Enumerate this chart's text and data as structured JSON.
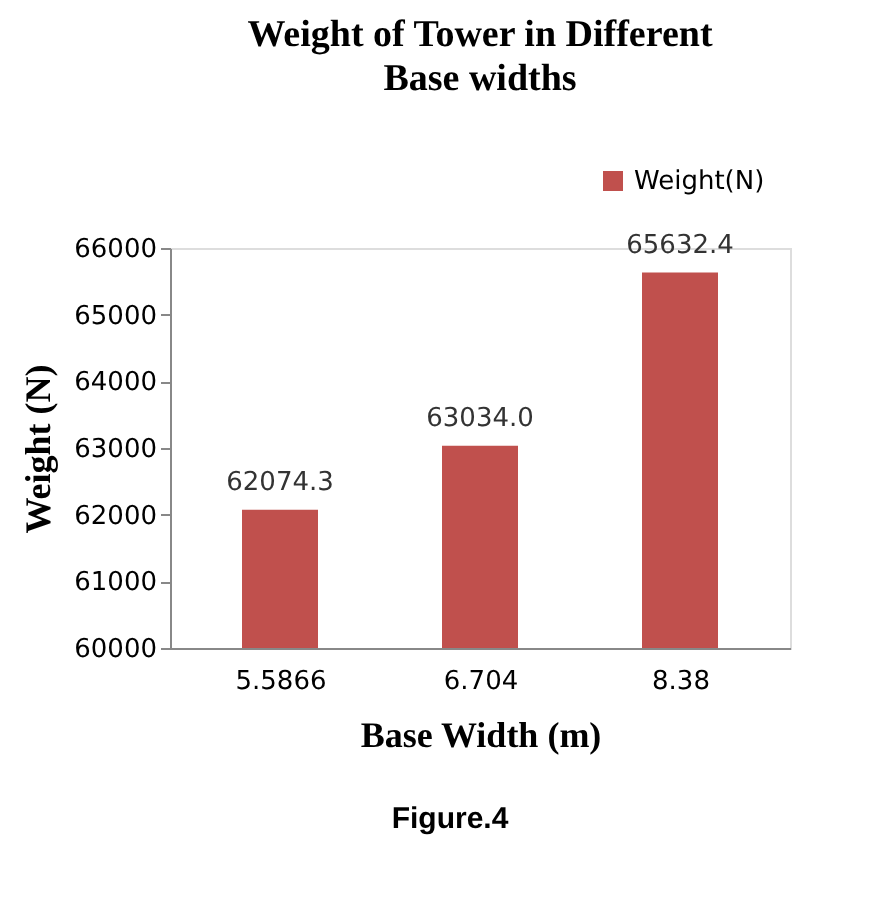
{
  "chart_data": {
    "type": "bar",
    "title": "Weight of Tower in Different Base widths",
    "xlabel": "Base Width (m)",
    "ylabel": "Weight (N)",
    "categories": [
      "5.5866",
      "6.704",
      "8.38"
    ],
    "series": [
      {
        "name": "Weight(N)",
        "color": "#c0504d",
        "values": [
          62074.3,
          63034.0,
          65632.4
        ],
        "value_labels": [
          "62074.3",
          "63034.0",
          "65632.4"
        ]
      }
    ],
    "ylim": [
      60000,
      66000
    ],
    "yticks": [
      60000,
      61000,
      62000,
      63000,
      64000,
      65000,
      66000
    ],
    "legend": "top right",
    "grid": false,
    "annotations": [
      "Figure.4"
    ]
  }
}
